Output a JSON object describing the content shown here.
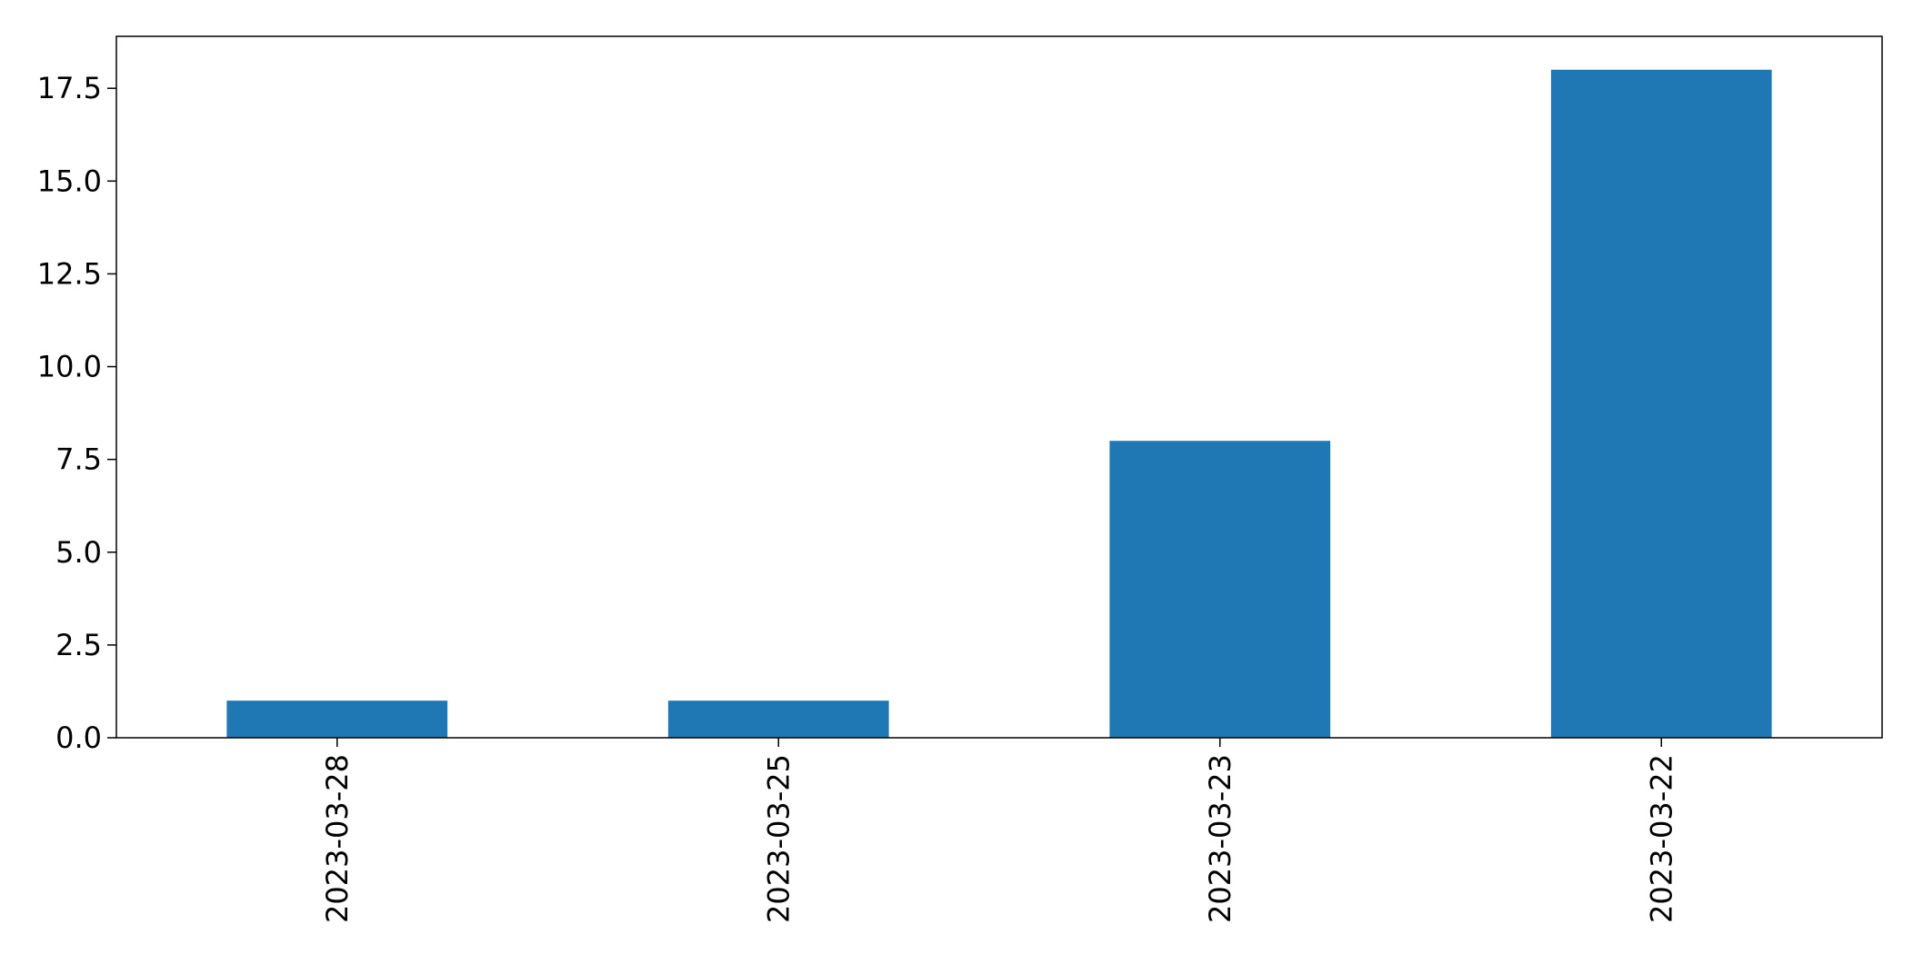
{
  "chart_data": {
    "type": "bar",
    "title": "",
    "xlabel": "",
    "ylabel": "",
    "categories": [
      "2023-03-28",
      "2023-03-25",
      "2023-03-23",
      "2023-03-22"
    ],
    "values": [
      1,
      1,
      8,
      18
    ],
    "ylim": [
      0,
      18.9
    ],
    "yticks": [
      0.0,
      2.5,
      5.0,
      7.5,
      10.0,
      12.5,
      15.0,
      17.5
    ],
    "ytick_labels": [
      "0.0",
      "2.5",
      "5.0",
      "7.5",
      "10.0",
      "12.5",
      "15.0",
      "17.5"
    ],
    "grid": false,
    "legend": "none",
    "bar_color": "#1f77b4",
    "x_tick_rotation": "vertical"
  }
}
